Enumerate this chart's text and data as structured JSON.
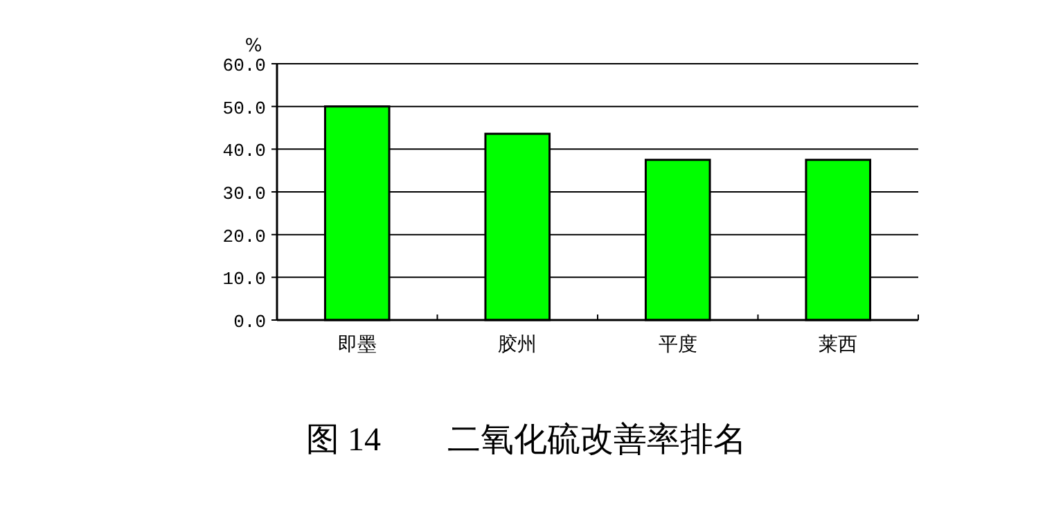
{
  "chart_data": {
    "type": "bar",
    "title": "图 14　　二氧化硫改善率排名",
    "ylabel": "%",
    "categories": [
      "即墨",
      "胶州",
      "平度",
      "莱西"
    ],
    "values": [
      50.0,
      43.6,
      37.5,
      37.5
    ],
    "color": "#00ff00",
    "ylim": [
      0,
      60
    ],
    "yticks": [
      {
        "value": 0,
        "label": "0.0"
      },
      {
        "value": 10,
        "label": "10.0"
      },
      {
        "value": 20,
        "label": "20.0"
      },
      {
        "value": 30,
        "label": "30.0"
      },
      {
        "value": 40,
        "label": "40.0"
      },
      {
        "value": 50,
        "label": "50.0"
      },
      {
        "value": 60,
        "label": "60.0"
      }
    ],
    "grid": "y"
  }
}
